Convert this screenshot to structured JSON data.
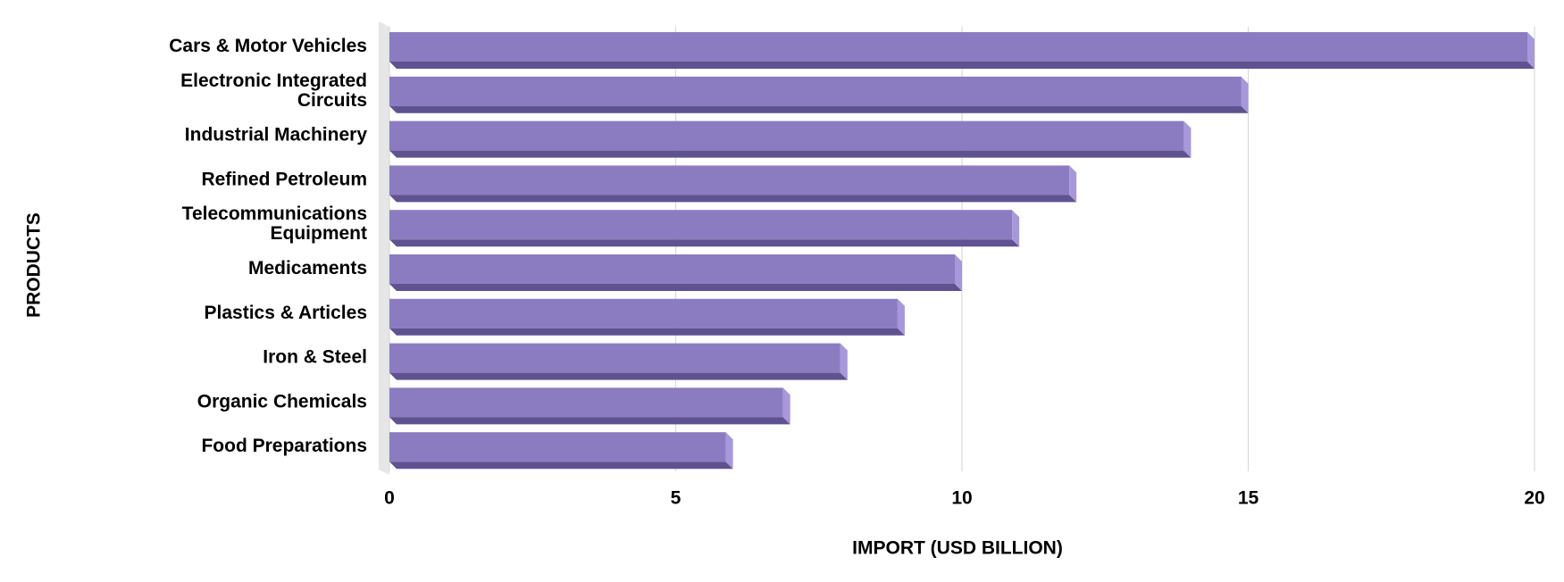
{
  "chart_data": {
    "type": "bar",
    "orientation": "horizontal",
    "x_label": "IMPORT (USD BILLION)",
    "y_label": "PRODUCTS",
    "categories": [
      "Cars & Motor Vehicles",
      "Electronic Integrated Circuits",
      "Industrial Machinery",
      "Refined Petroleum",
      "Telecommunications Equipment",
      "Medicaments",
      "Plastics & Articles",
      "Iron & Steel",
      "Organic Chemicals",
      "Food Preparations"
    ],
    "values": [
      20,
      15,
      14,
      12,
      11,
      10,
      9,
      8,
      7,
      6
    ],
    "color": "#8b7cc1",
    "xlim": [
      0,
      20
    ],
    "xticks": [
      0,
      5,
      10,
      15,
      20
    ],
    "grid": true
  }
}
